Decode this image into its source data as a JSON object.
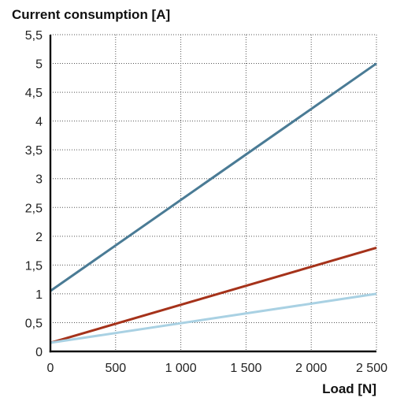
{
  "chart_data": {
    "type": "line",
    "ylabel": "Current consumption [A]",
    "xlabel": "Load [N]",
    "xlim": [
      0,
      2500
    ],
    "ylim": [
      0,
      5.5
    ],
    "x_ticks": [
      {
        "value": 0,
        "label": "0"
      },
      {
        "value": 500,
        "label": "500"
      },
      {
        "value": 1000,
        "label": "1 000"
      },
      {
        "value": 1500,
        "label": "1 500"
      },
      {
        "value": 2000,
        "label": "2 000"
      },
      {
        "value": 2500,
        "label": "2 500"
      }
    ],
    "y_ticks": [
      {
        "value": 0,
        "label": "0"
      },
      {
        "value": 0.5,
        "label": "0,5"
      },
      {
        "value": 1,
        "label": "1"
      },
      {
        "value": 1.5,
        "label": "1,5"
      },
      {
        "value": 2,
        "label": "2"
      },
      {
        "value": 2.5,
        "label": "2,5"
      },
      {
        "value": 3,
        "label": "3"
      },
      {
        "value": 3.5,
        "label": "3,5"
      },
      {
        "value": 4,
        "label": "4"
      },
      {
        "value": 4.5,
        "label": "4,5"
      },
      {
        "value": 5,
        "label": "5"
      },
      {
        "value": 5.5,
        "label": "5,5"
      }
    ],
    "grid": true,
    "legend": "none",
    "series": [
      {
        "color": "#4a7b95",
        "x": [
          0,
          2500
        ],
        "y": [
          1.05,
          5.0
        ]
      },
      {
        "color": "#a5321a",
        "x": [
          0,
          2500
        ],
        "y": [
          0.15,
          1.8
        ]
      },
      {
        "color": "#a9d1e3",
        "x": [
          0,
          2500
        ],
        "y": [
          0.15,
          1.0
        ]
      }
    ]
  }
}
